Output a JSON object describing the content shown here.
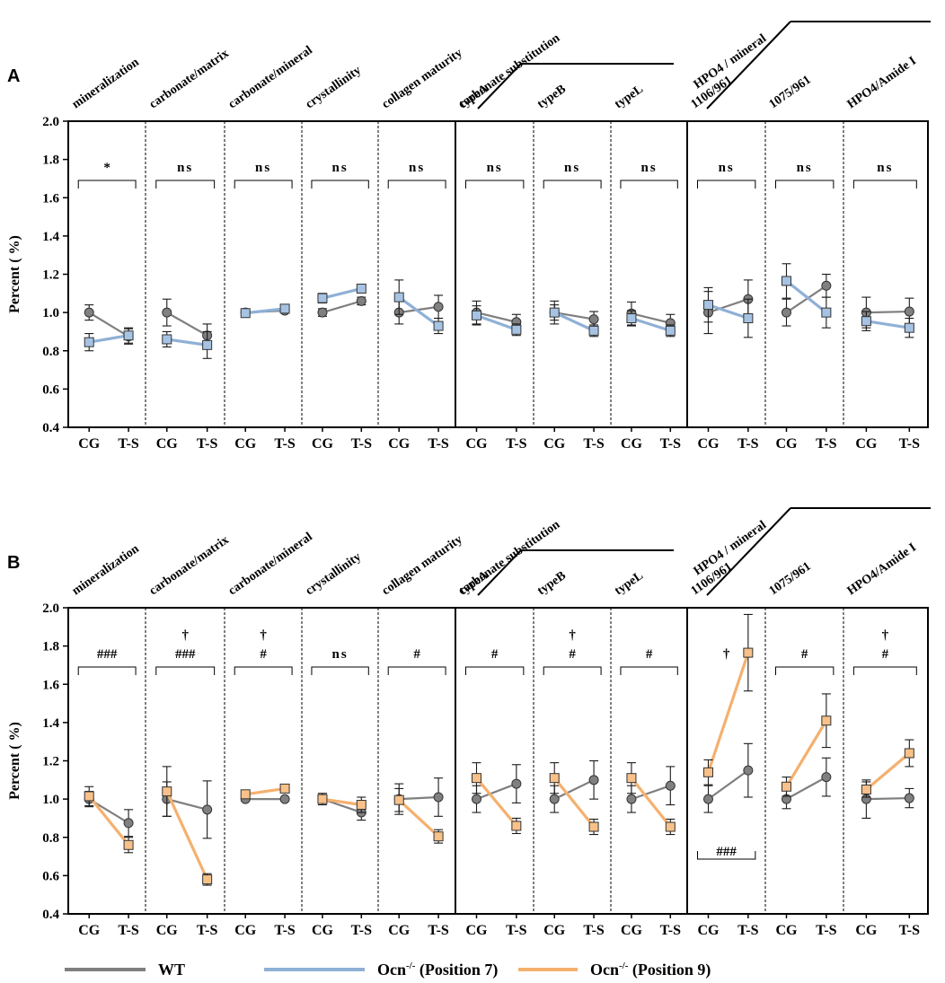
{
  "colors": {
    "wt": "#7f7f7f",
    "pos7": "#8fb0d6",
    "pos9": "#f5b06e",
    "wt_marker": "#808080",
    "pos7_marker": "#a7c3e3",
    "pos9_marker": "#f7c189"
  },
  "legend": {
    "wt": {
      "label": "WT"
    },
    "pos7": {
      "label_main": "Ocn",
      "label_sup": "-/-",
      "label_rest": " (Position 7)"
    },
    "pos9": {
      "label_main": "Ocn",
      "label_sup": "-/-",
      "label_rest": " (Position 9)"
    }
  },
  "group_labels": {
    "carbonate_substitution": "carbonate substitution",
    "hpo4_mineral": "HPO4 / mineral"
  },
  "chart_data": [
    {
      "panel": "A",
      "type": "line",
      "ylabel": "Percent ( %)",
      "ylim": [
        0.4,
        2.0
      ],
      "yticks": [
        "0.4",
        "0.6",
        "0.8",
        "1.0",
        "1.2",
        "1.4",
        "1.6",
        "1.8",
        "2.0"
      ],
      "categories": [
        "CG",
        "T-S"
      ],
      "series_names": [
        "WT",
        "Ocn-/- (Position 7)"
      ],
      "subplots": [
        {
          "title": "mineralization",
          "wt": [
            1.0,
            0.875
          ],
          "wt_err": [
            0.04,
            0.04
          ],
          "ko": [
            0.845,
            0.88
          ],
          "ko_err": [
            0.045,
            0.04
          ],
          "annotation": "*"
        },
        {
          "title": "carbonate/matrix",
          "wt": [
            1.0,
            0.88
          ],
          "wt_err": [
            0.07,
            0.06
          ],
          "ko": [
            0.86,
            0.83
          ],
          "ko_err": [
            0.04,
            0.07
          ],
          "annotation": "ns"
        },
        {
          "title": "carbonate/mineral",
          "wt": [
            1.0,
            1.01
          ],
          "wt_err": [
            0.01,
            0.01
          ],
          "ko": [
            0.997,
            1.02
          ],
          "ko_err": [
            0.01,
            0.01
          ],
          "annotation": "ns"
        },
        {
          "title": "crystallinity",
          "wt": [
            1.0,
            1.06
          ],
          "wt_err": [
            0.02,
            0.02
          ],
          "ko": [
            1.075,
            1.125
          ],
          "ko_err": [
            0.025,
            0.02
          ],
          "annotation": "ns"
        },
        {
          "title": "collagen maturity",
          "wt": [
            1.0,
            1.03
          ],
          "wt_err": [
            0.06,
            0.06
          ],
          "ko": [
            1.08,
            0.93
          ],
          "ko_err": [
            0.09,
            0.04
          ],
          "annotation": "ns"
        },
        {
          "title": "typeA",
          "wt": [
            1.0,
            0.95
          ],
          "wt_err": [
            0.06,
            0.04
          ],
          "ko": [
            0.985,
            0.91
          ],
          "ko_err": [
            0.05,
            0.03
          ],
          "annotation": "ns"
        },
        {
          "title": "typeB",
          "wt": [
            1.0,
            0.965
          ],
          "wt_err": [
            0.06,
            0.04
          ],
          "ko": [
            1.0,
            0.905
          ],
          "ko_err": [
            0.04,
            0.03
          ],
          "annotation": "ns"
        },
        {
          "title": "typeL",
          "wt": [
            0.995,
            0.945
          ],
          "wt_err": [
            0.06,
            0.045
          ],
          "ko": [
            0.97,
            0.905
          ],
          "ko_err": [
            0.04,
            0.03
          ],
          "annotation": "ns"
        },
        {
          "title": "1106/961",
          "wt": [
            1.0,
            1.07
          ],
          "wt_err": [
            0.11,
            0.1
          ],
          "ko": [
            1.04,
            0.97
          ],
          "ko_err": [
            0.09,
            0.1
          ],
          "annotation": "ns"
        },
        {
          "title": "1075/961",
          "wt": [
            1.0,
            1.14
          ],
          "wt_err": [
            0.07,
            0.06
          ],
          "ko": [
            1.165,
            1.0
          ],
          "ko_err": [
            0.09,
            0.08
          ],
          "annotation": "ns"
        },
        {
          "title": "HPO4/Amide I",
          "wt": [
            1.0,
            1.005
          ],
          "wt_err": [
            0.08,
            0.07
          ],
          "ko": [
            0.955,
            0.92
          ],
          "ko_err": [
            0.05,
            0.05
          ],
          "annotation": "ns"
        }
      ]
    },
    {
      "panel": "B",
      "type": "line",
      "ylabel": "Percent ( %)",
      "ylim": [
        0.4,
        2.0
      ],
      "yticks": [
        "0.4",
        "0.6",
        "0.8",
        "1.0",
        "1.2",
        "1.4",
        "1.6",
        "1.8",
        "2.0"
      ],
      "categories": [
        "CG",
        "T-S"
      ],
      "series_names": [
        "WT",
        "Ocn-/- (Position 9)"
      ],
      "subplots": [
        {
          "title": "mineralization",
          "wt": [
            1.0,
            0.875
          ],
          "wt_err": [
            0.04,
            0.07
          ],
          "ko": [
            1.015,
            0.76
          ],
          "ko_err": [
            0.05,
            0.04
          ],
          "annotation": "###"
        },
        {
          "title": "carbonate/matrix",
          "wt": [
            1.0,
            0.945
          ],
          "wt_err": [
            0.09,
            0.15
          ],
          "ko": [
            1.04,
            0.58
          ],
          "ko_err": [
            0.13,
            0.03
          ],
          "annotation": "###",
          "dagger": "†"
        },
        {
          "title": "carbonate/mineral",
          "wt": [
            1.0,
            1.0
          ],
          "wt_err": [
            0.01,
            0.01
          ],
          "ko": [
            1.025,
            1.055
          ],
          "ko_err": [
            0.01,
            0.01
          ],
          "annotation": "#",
          "dagger": "†"
        },
        {
          "title": "crystallinity",
          "wt": [
            1.0,
            0.93
          ],
          "wt_err": [
            0.03,
            0.04
          ],
          "ko": [
            1.0,
            0.97
          ],
          "ko_err": [
            0.02,
            0.04
          ],
          "annotation": "ns"
        },
        {
          "title": "collagen maturity",
          "wt": [
            1.0,
            1.01
          ],
          "wt_err": [
            0.08,
            0.1
          ],
          "ko": [
            0.995,
            0.805
          ],
          "ko_err": [
            0.06,
            0.035
          ],
          "annotation": "#"
        },
        {
          "title": "typeA",
          "wt": [
            1.0,
            1.08
          ],
          "wt_err": [
            0.07,
            0.1
          ],
          "ko": [
            1.11,
            0.86
          ],
          "ko_err": [
            0.08,
            0.04
          ],
          "annotation": "#"
        },
        {
          "title": "typeB",
          "wt": [
            1.0,
            1.1
          ],
          "wt_err": [
            0.07,
            0.1
          ],
          "ko": [
            1.11,
            0.855
          ],
          "ko_err": [
            0.08,
            0.04
          ],
          "annotation": "#",
          "dagger": "†"
        },
        {
          "title": "typeL",
          "wt": [
            1.0,
            1.07
          ],
          "wt_err": [
            0.07,
            0.1
          ],
          "ko": [
            1.11,
            0.855
          ],
          "ko_err": [
            0.08,
            0.04
          ],
          "annotation": "#"
        },
        {
          "title": "1106/961",
          "wt": [
            1.0,
            1.15
          ],
          "wt_err": [
            0.07,
            0.14
          ],
          "ko": [
            1.14,
            1.765
          ],
          "ko_err": [
            0.065,
            0.2
          ],
          "annotation": "",
          "dagger": "†",
          "annotation_below": "###"
        },
        {
          "title": "1075/961",
          "wt": [
            1.0,
            1.115
          ],
          "wt_err": [
            0.05,
            0.1
          ],
          "ko": [
            1.065,
            1.41
          ],
          "ko_err": [
            0.05,
            0.14
          ],
          "annotation": "#"
        },
        {
          "title": "HPO4/Amide I",
          "wt": [
            1.0,
            1.005
          ],
          "wt_err": [
            0.1,
            0.05
          ],
          "ko": [
            1.05,
            1.24
          ],
          "ko_err": [
            0.04,
            0.07
          ],
          "annotation": "#",
          "dagger": "†"
        }
      ]
    }
  ]
}
